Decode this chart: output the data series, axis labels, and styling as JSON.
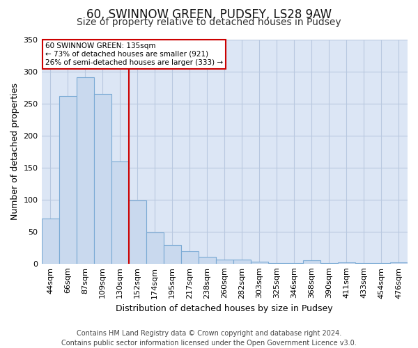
{
  "title": "60, SWINNOW GREEN, PUDSEY, LS28 9AW",
  "subtitle": "Size of property relative to detached houses in Pudsey",
  "xlabel": "Distribution of detached houses by size in Pudsey",
  "ylabel": "Number of detached properties",
  "footer_line1": "Contains HM Land Registry data © Crown copyright and database right 2024.",
  "footer_line2": "Contains public sector information licensed under the Open Government Licence v3.0.",
  "bar_labels": [
    "44sqm",
    "66sqm",
    "87sqm",
    "109sqm",
    "130sqm",
    "152sqm",
    "174sqm",
    "195sqm",
    "217sqm",
    "238sqm",
    "260sqm",
    "282sqm",
    "303sqm",
    "325sqm",
    "346sqm",
    "368sqm",
    "390sqm",
    "411sqm",
    "433sqm",
    "454sqm",
    "476sqm"
  ],
  "bar_values": [
    70,
    261,
    291,
    265,
    159,
    98,
    48,
    29,
    19,
    10,
    6,
    6,
    3,
    1,
    1,
    5,
    1,
    2,
    1,
    1,
    2
  ],
  "bar_color": "#c9d9ee",
  "bar_edge_color": "#7aaad4",
  "ylim": [
    0,
    350
  ],
  "yticks": [
    0,
    50,
    100,
    150,
    200,
    250,
    300,
    350
  ],
  "vline_x": 4.5,
  "vline_color": "#cc0000",
  "annotation_title": "60 SWINNOW GREEN: 135sqm",
  "annotation_line1": "← 73% of detached houses are smaller (921)",
  "annotation_line2": "26% of semi-detached houses are larger (333) →",
  "annotation_box_color": "#cc0000",
  "fig_bg_color": "#ffffff",
  "plot_bg_color": "#dce6f5",
  "grid_color": "#b8c8e0",
  "title_fontsize": 12,
  "subtitle_fontsize": 10,
  "label_fontsize": 9,
  "tick_fontsize": 8,
  "footer_fontsize": 7
}
